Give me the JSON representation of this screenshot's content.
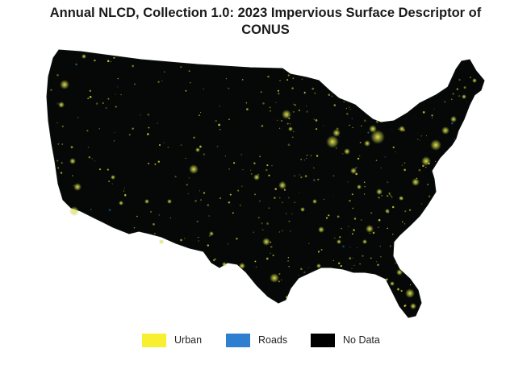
{
  "title_line1": "Annual NLCD, Collection 1.0: 2023 Impervious Surface Descriptor of",
  "title_line2": "CONUS",
  "map": {
    "background_color": "#ffffff",
    "land_color": "#050806",
    "urban_color": "#f2ec3a",
    "road_color": "#2f7fd1"
  },
  "legend": [
    {
      "label": "Urban",
      "color": "#f7ef2f"
    },
    {
      "label": "Roads",
      "color": "#2f7fd1"
    },
    {
      "label": "No Data",
      "color": "#000000"
    }
  ]
}
